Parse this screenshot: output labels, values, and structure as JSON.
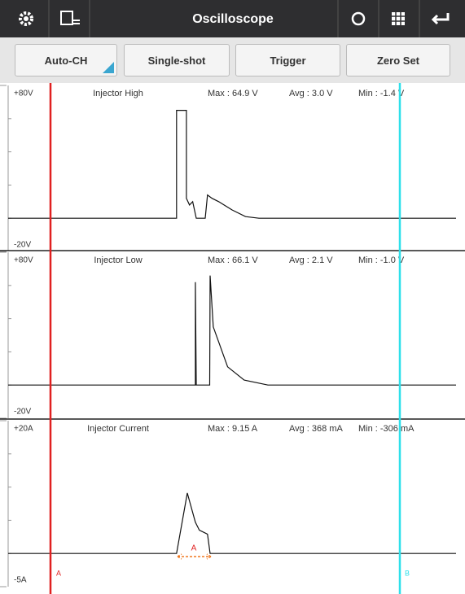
{
  "toolbar": {
    "title": "Oscilloscope"
  },
  "buttons": [
    "Auto-CH",
    "Single-shot",
    "Trigger",
    "Zero Set"
  ],
  "xlim": [
    0,
    10
  ],
  "channels": [
    {
      "name": "Injector High",
      "max": "Max : 64.9 V",
      "avg": "Avg : 3.0 V",
      "min": "Min : -1.4 V",
      "yticks": [
        {
          "value": 80,
          "label": "+80V"
        },
        {
          "value": -20,
          "label": "-20V"
        }
      ],
      "trace": {
        "x": [
          0,
          3.76,
          3.76,
          3.98,
          3.98,
          4.05,
          4.12,
          4.2,
          4.4,
          4.45,
          4.55,
          4.7,
          5.0,
          5.3,
          5.6,
          10
        ],
        "values": [
          0,
          0,
          65,
          65,
          12,
          8,
          10,
          0,
          0,
          14,
          12,
          10,
          5,
          1,
          0,
          0
        ]
      }
    },
    {
      "name": "Injector Low",
      "max": "Max : 66.1 V",
      "avg": "Avg : 2.1 V",
      "min": "Min : -1.0 V",
      "yticks": [
        {
          "value": 80,
          "label": "+80V"
        },
        {
          "value": -20,
          "label": "-20V"
        }
      ],
      "trace": {
        "x": [
          0,
          4.18,
          4.18,
          4.2,
          4.5,
          4.51,
          4.58,
          4.9,
          5.27,
          5.8,
          10
        ],
        "values": [
          0,
          0,
          62,
          0,
          0,
          66,
          35,
          11,
          3,
          0,
          0
        ]
      }
    },
    {
      "name": "Injector Current",
      "max": "Max : 9.15 A",
      "avg": "Avg : 368 mA",
      "min": "Min : -306 mA",
      "yticks": [
        {
          "value": 20,
          "label": "+20A"
        },
        {
          "value": -5,
          "label": "-5A"
        }
      ],
      "trace": {
        "x": [
          0,
          3.76,
          4.0,
          4.18,
          4.27,
          4.45,
          4.51,
          10
        ],
        "values": [
          0,
          0,
          9.1,
          4.7,
          3.5,
          2.9,
          0,
          0
        ]
      }
    }
  ],
  "cursors": {
    "a": "A",
    "b": "B"
  },
  "measure_label": "A"
}
